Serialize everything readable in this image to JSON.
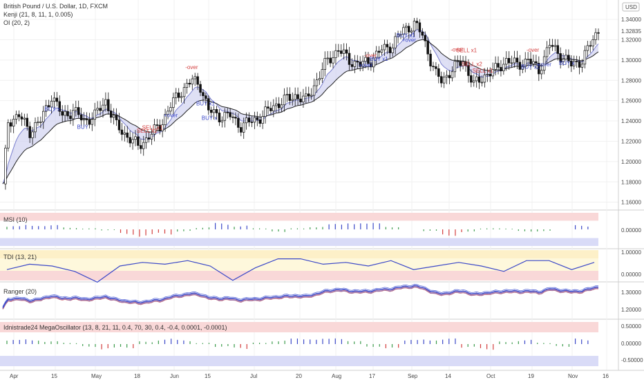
{
  "header": {
    "title": "British Pound / U.S. Dollar, 1D, FXCM",
    "indicator1": "Kenji (21, 8, 11, 1, 0.005)",
    "indicator2": "OI (20, 2)",
    "currency_button": "USD",
    "last_price": "1.32835"
  },
  "panes": {
    "msi": {
      "title": "MSI (10)",
      "ticks": [
        "0.00000"
      ]
    },
    "tdi": {
      "title": "TDI (13, 21)",
      "ticks": [
        "1.00000",
        "0.00000"
      ]
    },
    "ranger": {
      "title": "Ranger (20)",
      "ticks": [
        "1.30000",
        "1.20000"
      ]
    },
    "mega": {
      "title": "Idnistrade24 MegaOscillator (13, 8, 21, 11, 0.4, 70, 30, 0.4, -0.4, 0.0001, -0.0001)",
      "ticks": [
        "0.50000",
        "0.00000",
        "-0.50000"
      ]
    }
  },
  "x_axis_labels": [
    "Apr",
    "15",
    "May",
    "18",
    "Jun",
    "15",
    "Jul",
    "20",
    "Aug",
    "17",
    "Sep",
    "14",
    "Oct",
    "19",
    "Nov",
    "16"
  ],
  "signals": [
    {
      "text": "BUY x",
      "color": "#3b48c8"
    },
    {
      "text": "BUY",
      "color": "#3b48c8"
    },
    {
      "text": "SELL x2",
      "color": "#d23c3c"
    },
    {
      "text": "SELL x1",
      "color": "#d23c3c"
    },
    {
      "text": "+over",
      "color": "#3b48c8"
    },
    {
      "text": "-over",
      "color": "#d23c3c"
    },
    {
      "text": "BUY x1",
      "color": "#3b48c8"
    },
    {
      "text": "BUY x",
      "color": "#3b48c8"
    },
    {
      "text": "+over",
      "color": "#3b48c8"
    },
    {
      "text": "-over",
      "color": "#d23c3c"
    },
    {
      "text": "BUY x1",
      "color": "#3b48c8"
    },
    {
      "text": "BUY x1",
      "color": "#3b48c8"
    },
    {
      "text": "+over",
      "color": "#3b48c8"
    },
    {
      "text": "-over",
      "color": "#d23c3c"
    },
    {
      "text": "SELL x1",
      "color": "#d23c3c"
    },
    {
      "text": "SELL x2",
      "color": "#d23c3c"
    },
    {
      "text": "SELL x1",
      "color": "#d23c3c"
    },
    {
      "text": "-over",
      "color": "#d23c3c"
    },
    {
      "text": "+over",
      "color": "#3b48c8"
    },
    {
      "text": "BUY x2",
      "color": "#3b48c8"
    },
    {
      "text": "BUY x",
      "color": "#3b48c8"
    }
  ],
  "chart_data": {
    "type": "candlestick",
    "symbol": "British Pound / U.S. Dollar",
    "interval": "1D",
    "ylim": [
      1.155,
      1.355
    ],
    "y_ticks": [
      1.16,
      1.18,
      1.2,
      1.22,
      1.24,
      1.26,
      1.28,
      1.3,
      1.32,
      1.34
    ],
    "last_close": 1.32835,
    "close_path": [
      [
        0,
        1.175
      ],
      [
        2,
        1.24
      ],
      [
        6,
        1.245
      ],
      [
        10,
        1.23
      ],
      [
        14,
        1.24
      ],
      [
        18,
        1.265
      ],
      [
        22,
        1.245
      ],
      [
        26,
        1.25
      ],
      [
        30,
        1.24
      ],
      [
        34,
        1.245
      ],
      [
        38,
        1.26
      ],
      [
        42,
        1.235
      ],
      [
        46,
        1.225
      ],
      [
        50,
        1.215
      ],
      [
        54,
        1.225
      ],
      [
        58,
        1.235
      ],
      [
        62,
        1.255
      ],
      [
        66,
        1.27
      ],
      [
        70,
        1.28
      ],
      [
        73,
        1.275
      ],
      [
        76,
        1.25
      ],
      [
        80,
        1.245
      ],
      [
        84,
        1.245
      ],
      [
        88,
        1.235
      ],
      [
        92,
        1.24
      ],
      [
        96,
        1.245
      ],
      [
        100,
        1.255
      ],
      [
        104,
        1.26
      ],
      [
        108,
        1.265
      ],
      [
        112,
        1.26
      ],
      [
        116,
        1.28
      ],
      [
        120,
        1.3
      ],
      [
        124,
        1.31
      ],
      [
        128,
        1.3
      ],
      [
        132,
        1.295
      ],
      [
        136,
        1.3
      ],
      [
        140,
        1.31
      ],
      [
        144,
        1.315
      ],
      [
        148,
        1.33
      ],
      [
        152,
        1.335
      ],
      [
        155,
        1.325
      ],
      [
        158,
        1.3
      ],
      [
        160,
        1.285
      ],
      [
        162,
        1.28
      ],
      [
        166,
        1.29
      ],
      [
        170,
        1.3
      ],
      [
        174,
        1.275
      ],
      [
        178,
        1.285
      ],
      [
        182,
        1.29
      ],
      [
        186,
        1.3
      ],
      [
        190,
        1.295
      ],
      [
        194,
        1.3
      ],
      [
        198,
        1.29
      ],
      [
        202,
        1.315
      ],
      [
        206,
        1.305
      ],
      [
        210,
        1.295
      ],
      [
        214,
        1.3
      ],
      [
        218,
        1.32
      ],
      [
        220,
        1.33
      ]
    ],
    "msi": {
      "values": [
        0.3,
        0.5,
        0.4,
        0.2,
        0.1,
        -0.1,
        -0.5,
        -0.7,
        -0.5,
        -0.2,
        0.2,
        0.6,
        0.4,
        0.1,
        -0.3,
        0.1,
        0.3,
        0.5,
        0.8,
        0.6,
        0.3,
        0.0,
        -0.2,
        -0.6,
        -0.3,
        0.1,
        0.1,
        -0.2,
        -0.2,
        0.0,
        0.4
      ]
    },
    "tdi": {
      "values": [
        0.3,
        0.6,
        0.5,
        0.2,
        -0.4,
        0.5,
        0.7,
        0.6,
        0.8,
        0.5,
        -0.3,
        0.4,
        0.9,
        0.9,
        0.6,
        0.7,
        0.5,
        0.8,
        0.3,
        0.5,
        0.7,
        0.5,
        0.2,
        0.8,
        0.8,
        0.3,
        0.7
      ]
    },
    "mega": {
      "values": [
        0.3,
        0.4,
        0.2,
        0.1,
        -0.2,
        -0.4,
        -0.3,
        0.2,
        0.4,
        0.3,
        0.1,
        -0.2,
        -0.4,
        0.1,
        0.3,
        0.4,
        0.5,
        0.4,
        0.3,
        -0.2,
        -0.4,
        0.3,
        0.4,
        0.4,
        -0.3,
        -0.4,
        0.2,
        0.3,
        0.1,
        -0.2,
        0.4
      ]
    }
  }
}
